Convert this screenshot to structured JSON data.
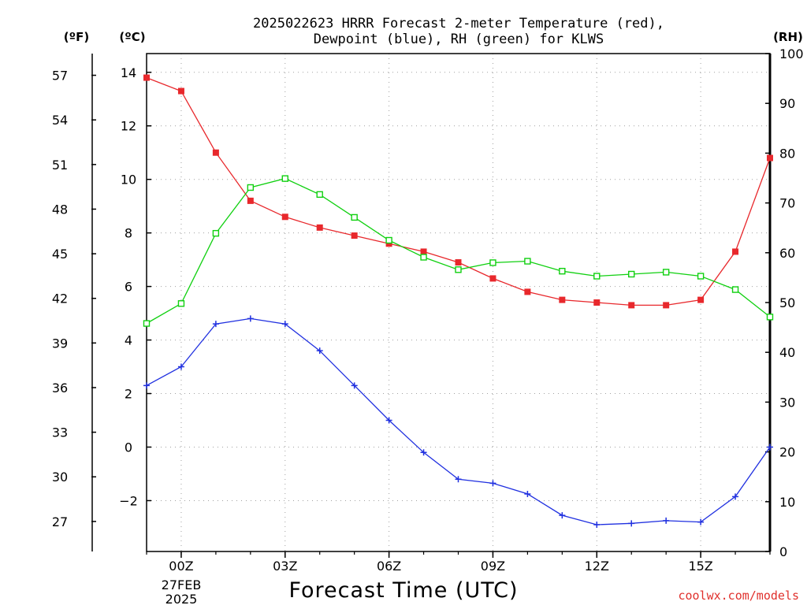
{
  "title_line1": "2025022623 HRRR Forecast 2-meter Temperature (red),",
  "title_line2": "Dewpoint (blue), RH (green) for KLWS",
  "units": {
    "f": "(ºF)",
    "c": "(ºC)",
    "rh": "(RH)"
  },
  "x_axis_label": "Forecast Time (UTC)",
  "date_label": [
    "27FEB",
    "2025"
  ],
  "credit": "coolwx.com/models",
  "colors": {
    "temperature": "#e8282c",
    "dewpoint": "#2030e0",
    "rh": "#10d010"
  },
  "chart_data": {
    "type": "line",
    "x": [
      "23Z",
      "00Z",
      "01Z",
      "02Z",
      "03Z",
      "04Z",
      "05Z",
      "06Z",
      "07Z",
      "08Z",
      "09Z",
      "10Z",
      "11Z",
      "12Z",
      "13Z",
      "14Z",
      "15Z",
      "16Z",
      "17Z"
    ],
    "x_tick_labels": [
      "00Z",
      "03Z",
      "06Z",
      "09Z",
      "12Z",
      "15Z"
    ],
    "xlabel": "Forecast Time (UTC)",
    "left_axis_f": {
      "ticks": [
        27,
        30,
        33,
        36,
        39,
        42,
        45,
        48,
        51,
        54,
        57
      ]
    },
    "left_axis_c": {
      "ticks": [
        -2,
        0,
        2,
        4,
        6,
        8,
        10,
        12,
        14
      ],
      "ylim": [
        -3.9,
        14.7
      ]
    },
    "right_axis_rh": {
      "ticks": [
        0,
        10,
        20,
        30,
        40,
        50,
        60,
        70,
        80,
        90,
        100
      ],
      "ylim": [
        0,
        100
      ]
    },
    "grid": true,
    "series": [
      {
        "name": "Temperature",
        "unit": "C",
        "axis": "c",
        "marker": "filled-square",
        "values": [
          13.8,
          13.3,
          11.0,
          9.2,
          8.6,
          8.2,
          7.9,
          7.6,
          7.3,
          6.9,
          6.3,
          5.8,
          5.5,
          5.4,
          5.3,
          5.3,
          5.5,
          7.3,
          10.8
        ]
      },
      {
        "name": "Dewpoint",
        "unit": "C",
        "axis": "c",
        "marker": "plus",
        "values": [
          2.3,
          3.0,
          4.6,
          4.8,
          4.6,
          3.6,
          2.3,
          1.0,
          -0.2,
          -1.2,
          -1.35,
          -1.75,
          -2.55,
          -2.9,
          -2.85,
          -2.75,
          -2.8,
          -1.85,
          0.0
        ]
      },
      {
        "name": "RH",
        "unit": "%",
        "axis": "rh",
        "marker": "open-square",
        "values": [
          45.8,
          49.8,
          63.9,
          73.1,
          74.9,
          71.7,
          67.1,
          62.5,
          59.1,
          56.6,
          58.0,
          58.3,
          56.3,
          55.3,
          55.7,
          56.1,
          55.3,
          52.6,
          47.1
        ]
      }
    ]
  }
}
